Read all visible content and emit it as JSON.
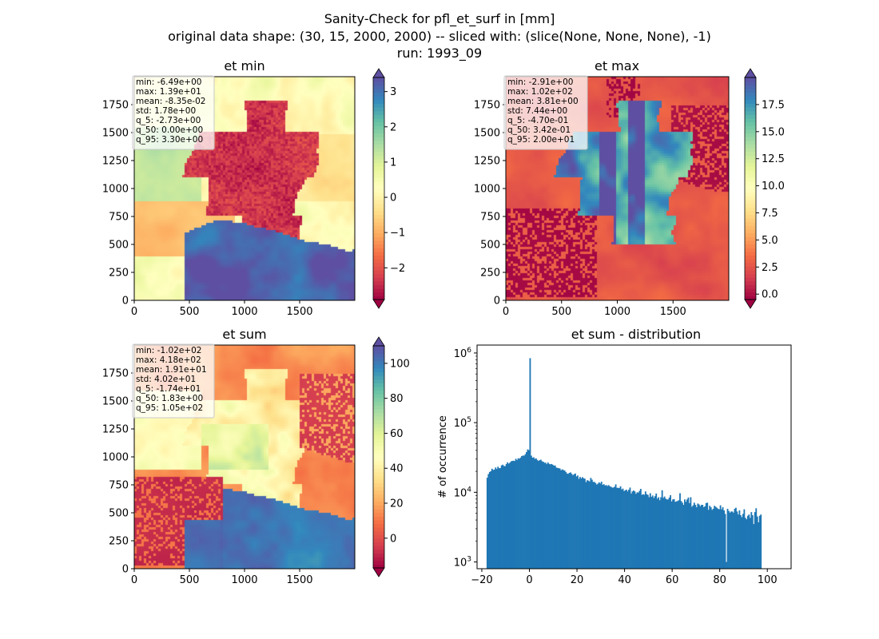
{
  "figure": {
    "title_lines": [
      "Sanity-Check for pfl_et_surf in [mm]",
      "original data shape: (30, 15, 2000, 2000) -- sliced with: (slice(None, None, None), -1)",
      "run: 1993_09"
    ]
  },
  "panels": [
    {
      "id": "et_min",
      "title": "et min",
      "xticks": [
        "0",
        "500",
        "1000",
        "1500"
      ],
      "yticks": [
        "0",
        "250",
        "500",
        "750",
        "1000",
        "1250",
        "1500",
        "1750"
      ],
      "colorbar_ticks": [
        "3",
        "2",
        "1",
        "0",
        "−1",
        "−2"
      ],
      "colorbar_range": [
        -2.9,
        3.4
      ],
      "colormap": "Spectral",
      "stats": [
        "min: -6.49e+00",
        "max: 1.39e+01",
        "mean: -8.35e-02",
        "std: 1.78e+00",
        "q_5: -2.73e+00",
        "q_50: 0.00e+00",
        "q_95: 3.30e+00"
      ]
    },
    {
      "id": "et_max",
      "title": "et max",
      "xticks": [
        "0",
        "500",
        "1000",
        "1500"
      ],
      "yticks": [
        "0",
        "250",
        "500",
        "750",
        "1000",
        "1250",
        "1500",
        "1750"
      ],
      "colorbar_ticks": [
        "17.5",
        "15.0",
        "12.5",
        "10.0",
        "7.5",
        "5.0",
        "2.5",
        "0.0"
      ],
      "colorbar_range": [
        -0.5,
        20
      ],
      "colormap": "Spectral",
      "stats": [
        "min: -2.91e+00",
        "max: 1.02e+02",
        "mean: 3.81e+00",
        "std: 7.44e+00",
        "q_5: -4.70e-01",
        "q_50: 3.42e-01",
        "q_95: 2.00e+01"
      ]
    },
    {
      "id": "et_sum",
      "title": "et sum",
      "xticks": [
        "0",
        "500",
        "1000",
        "1500"
      ],
      "yticks": [
        "0",
        "250",
        "500",
        "750",
        "1000",
        "1250",
        "1500",
        "1750"
      ],
      "colorbar_ticks": [
        "100",
        "80",
        "60",
        "40",
        "20",
        "0"
      ],
      "colorbar_range": [
        -17,
        110
      ],
      "colormap": "Spectral",
      "stats": [
        "min: -1.02e+02",
        "max: 4.18e+02",
        "mean: 1.91e+01",
        "std: 4.02e+01",
        "q_5: -1.74e+01",
        "q_50: 1.83e+00",
        "q_95: 1.05e+02"
      ]
    }
  ],
  "colors": {
    "histogram_bar": "#1f77b4"
  },
  "chart_data": {
    "type": "bar",
    "title": "et sum - distribution",
    "xlabel": "",
    "ylabel": "# of occurrence",
    "yscale": "log",
    "xlim": [
      -22,
      110
    ],
    "ylim": [
      800,
      1300000
    ],
    "xticks": [
      "−20",
      "0",
      "20",
      "40",
      "60",
      "80",
      "100"
    ],
    "yticks": [
      {
        "base": "10",
        "exp": "3"
      },
      {
        "base": "10",
        "exp": "4"
      },
      {
        "base": "10",
        "exp": "5"
      },
      {
        "base": "10",
        "exp": "6"
      }
    ],
    "grid": false,
    "bin_start": -18,
    "bin_width": 0.5,
    "values": [
      16200,
      18300,
      19600,
      20100,
      21800,
      20900,
      21200,
      22700,
      21600,
      23300,
      22200,
      22300,
      24300,
      24900,
      23900,
      23700,
      25400,
      26900,
      25800,
      26600,
      27800,
      28200,
      28400,
      28100,
      30300,
      29000,
      30800,
      30400,
      31500,
      33100,
      33700,
      33600,
      35300,
      37900,
      41300,
      40300,
      843000,
      33600,
      31400,
      31800,
      30200,
      30700,
      29200,
      28200,
      28900,
      29400,
      27900,
      27500,
      26600,
      26600,
      25400,
      26800,
      25600,
      25200,
      25500,
      24900,
      24100,
      24300,
      22700,
      22400,
      22200,
      22000,
      20700,
      21400,
      20800,
      20600,
      19600,
      18600,
      18400,
      19000,
      19300,
      18400,
      17600,
      18200,
      18600,
      16900,
      17400,
      15600,
      16600,
      15800,
      16500,
      15900,
      15700,
      14000,
      14900,
      14700,
      14300,
      16100,
      15200,
      14100,
      14100,
      13600,
      12900,
      13300,
      13900,
      13400,
      14200,
      12800,
      13100,
      12500,
      12700,
      12300,
      12700,
      12200,
      12000,
      11700,
      11700,
      12000,
      13000,
      11600,
      11600,
      11500,
      12200,
      11000,
      11300,
      10400,
      10700,
      10900,
      10300,
      10900,
      11700,
      9600,
      10300,
      10600,
      10300,
      9500,
      10000,
      9900,
      10500,
      11200,
      9200,
      9400,
      9200,
      10300,
      9400,
      9200,
      8500,
      9700,
      8600,
      9000,
      8300,
      8800,
      9600,
      8100,
      8500,
      7700,
      8500,
      10700,
      8300,
      8700,
      8100,
      7900,
      7900,
      8400,
      9100,
      7400,
      7900,
      8000,
      7300,
      7400,
      7500,
      7700,
      9700,
      7500,
      7100,
      6600,
      7900,
      7300,
      7900,
      8400,
      7000,
      8500,
      6200,
      6500,
      7100,
      6600,
      6100,
      6900,
      6700,
      6300,
      6600,
      6600,
      6100,
      6300,
      7000,
      7100,
      5600,
      6400,
      6100,
      5600,
      5800,
      6400,
      6200,
      6000,
      5800,
      5700,
      6500,
      5700,
      6100,
      5500,
      4900,
      1000,
      5800,
      5400,
      5100,
      5300,
      5300,
      5100,
      5800,
      6000,
      5300,
      4800,
      5500,
      4700,
      4400,
      4900,
      5700,
      4300,
      4100,
      4600,
      4800,
      4300,
      5200,
      4700,
      3500,
      5200,
      5900,
      4500,
      3700,
      4600,
      4800
    ]
  }
}
